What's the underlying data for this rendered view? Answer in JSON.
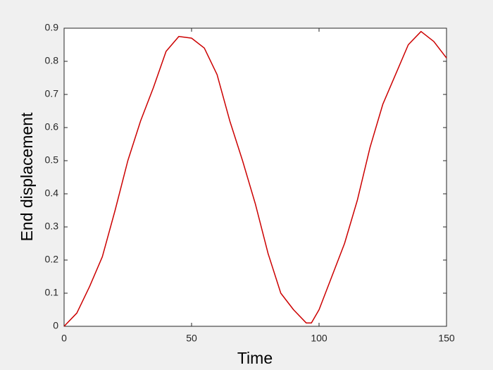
{
  "chart_data": {
    "type": "line",
    "xlabel": "Time",
    "ylabel": "End displacement",
    "x": [
      0,
      5,
      10,
      15,
      20,
      25,
      30,
      35,
      40,
      45,
      50,
      55,
      60,
      65,
      70,
      75,
      80,
      85,
      90,
      95,
      97,
      100,
      105,
      110,
      115,
      120,
      125,
      130,
      135,
      140,
      145,
      150
    ],
    "values": [
      0,
      0.04,
      0.12,
      0.21,
      0.35,
      0.5,
      0.62,
      0.72,
      0.83,
      0.875,
      0.87,
      0.84,
      0.76,
      0.62,
      0.5,
      0.37,
      0.22,
      0.1,
      0.05,
      0.01,
      0.01,
      0.05,
      0.15,
      0.25,
      0.38,
      0.54,
      0.67,
      0.76,
      0.85,
      0.89,
      0.86,
      0.81
    ],
    "color": "#cc0000",
    "xlim": [
      0,
      150
    ],
    "xticks": [
      0,
      50,
      100,
      150
    ],
    "ylim": [
      0,
      0.9
    ],
    "yticks": [
      0,
      0.1,
      0.2,
      0.3,
      0.4,
      0.5,
      0.6,
      0.7,
      0.8,
      0.9
    ],
    "grid": false
  }
}
